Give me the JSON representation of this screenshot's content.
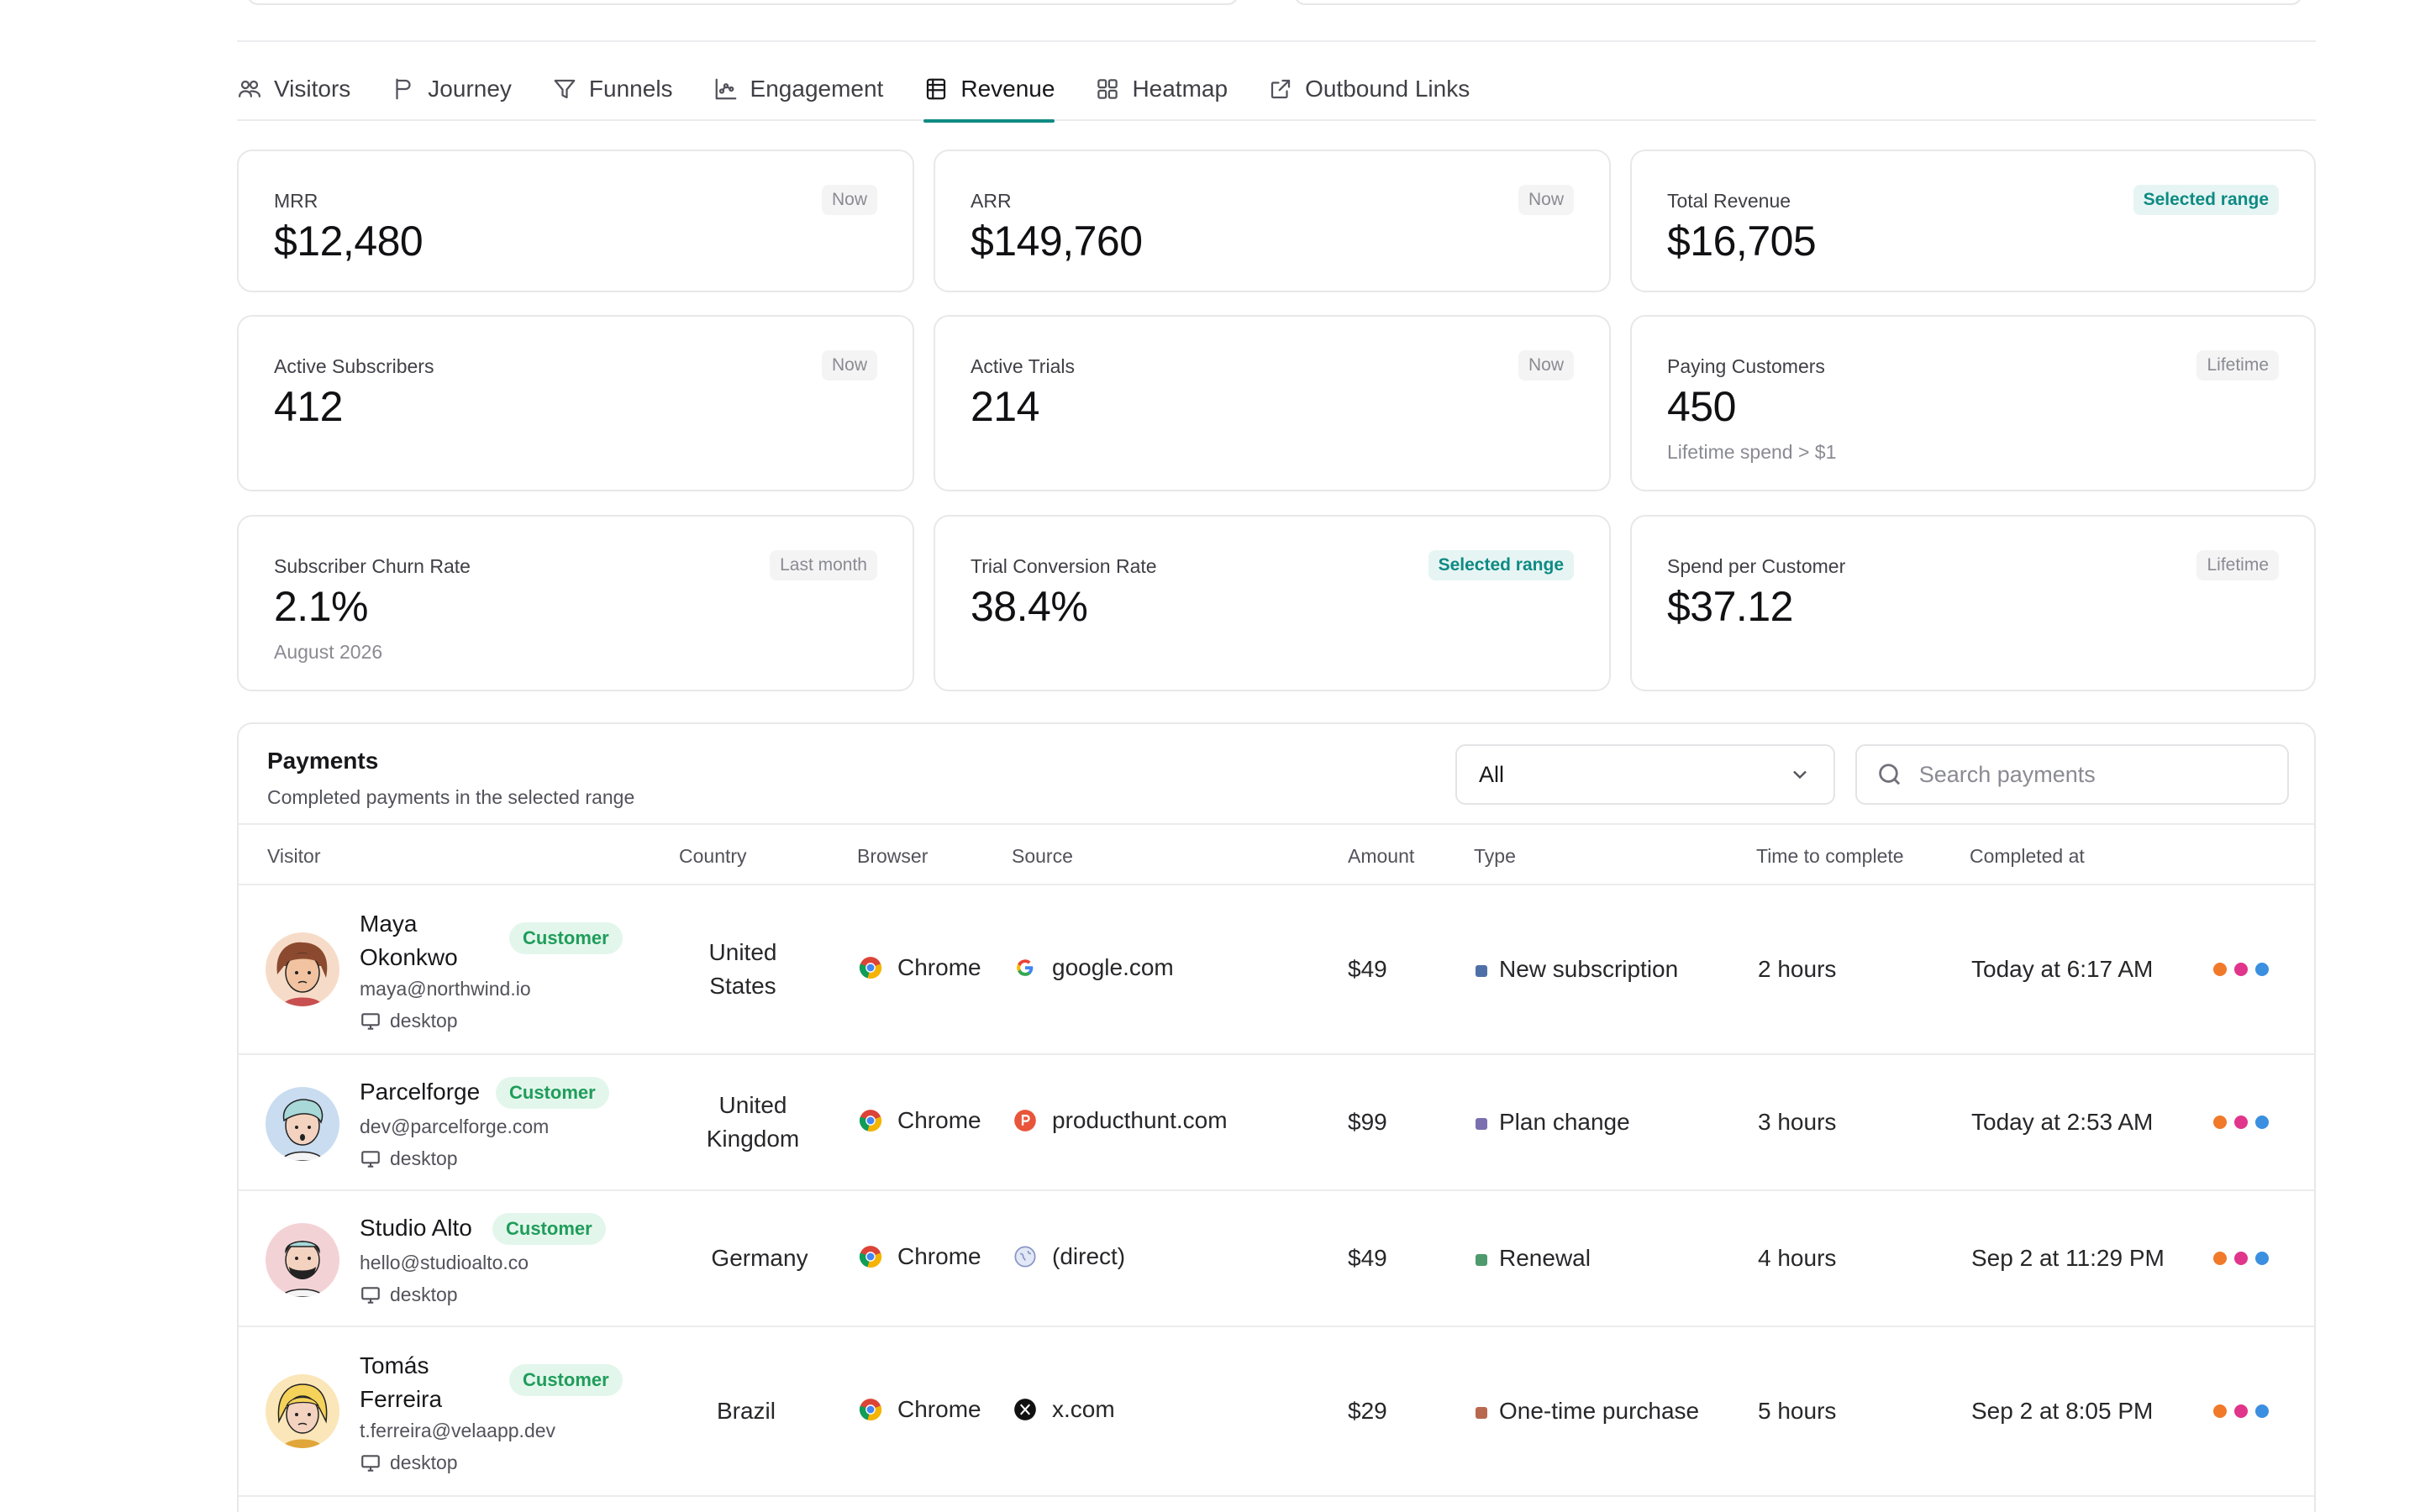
{
  "tabs": [
    {
      "label": "Visitors",
      "icon": "users-icon",
      "active": false
    },
    {
      "label": "Journey",
      "icon": "flag-icon",
      "active": false
    },
    {
      "label": "Funnels",
      "icon": "filter-icon",
      "active": false
    },
    {
      "label": "Engagement",
      "icon": "chart-icon",
      "active": false
    },
    {
      "label": "Revenue",
      "icon": "database-icon",
      "active": true
    },
    {
      "label": "Heatmap",
      "icon": "grid-icon",
      "active": false
    },
    {
      "label": "Outbound Links",
      "icon": "external-link-icon",
      "active": false
    }
  ],
  "metrics": {
    "mrr": {
      "label": "MRR",
      "badge": "Now",
      "value": "$12,480"
    },
    "arr": {
      "label": "ARR",
      "badge": "Now",
      "value": "$149,760"
    },
    "total_revenue": {
      "label": "Total Revenue",
      "badge": "Selected range",
      "value": "$16,705"
    },
    "active_subscribers": {
      "label": "Active Subscribers",
      "badge": "Now",
      "value": "412"
    },
    "active_trials": {
      "label": "Active Trials",
      "badge": "Now",
      "value": "214"
    },
    "paying_customers": {
      "label": "Paying Customers",
      "badge": "Lifetime",
      "value": "450",
      "sub": "Lifetime spend > $1"
    },
    "churn_rate": {
      "label": "Subscriber Churn Rate",
      "badge": "Last month",
      "value": "2.1%",
      "sub": "August 2026"
    },
    "trial_conversion": {
      "label": "Trial Conversion Rate",
      "badge": "Selected range",
      "value": "38.4%"
    },
    "spend_per_customer": {
      "label": "Spend per Customer",
      "badge": "Lifetime",
      "value": "$37.12"
    }
  },
  "payments": {
    "title": "Payments",
    "subtitle": "Completed payments in the selected range",
    "filter_value": "All",
    "search_placeholder": "Search payments",
    "columns": {
      "visitor": "Visitor",
      "country": "Country",
      "browser": "Browser",
      "source": "Source",
      "amount": "Amount",
      "type": "Type",
      "time": "Time to complete",
      "completed": "Completed at"
    },
    "rows": [
      {
        "name_line1": "Maya",
        "name_line2": "Okonkwo",
        "badge": "Customer",
        "email": "maya@northwind.io",
        "device": "desktop",
        "country_line1": "United",
        "country_line2": "States",
        "browser": "Chrome",
        "source": "google.com",
        "source_icon": "google-icon",
        "amount": "$49",
        "type": "New subscription",
        "type_color": "#4f6fa8",
        "time": "2 hours",
        "completed": "Today at 6:17 AM"
      },
      {
        "name_line1": "Parcelforge",
        "name_line2": "",
        "badge": "Customer",
        "email": "dev@parcelforge.com",
        "device": "desktop",
        "country_line1": "United",
        "country_line2": "Kingdom",
        "browser": "Chrome",
        "source": "producthunt.com",
        "source_icon": "producthunt-icon",
        "amount": "$99",
        "type": "Plan change",
        "type_color": "#7b6fb0",
        "time": "3 hours",
        "completed": "Today at 2:53 AM"
      },
      {
        "name_line1": "Studio Alto",
        "name_line2": "",
        "badge": "Customer",
        "email": "hello@studioalto.co",
        "device": "desktop",
        "country_line1": "Germany",
        "country_line2": "",
        "browser": "Chrome",
        "source": "(direct)",
        "source_icon": "globe-icon",
        "amount": "$49",
        "type": "Renewal",
        "type_color": "#4e9a6e",
        "time": "4 hours",
        "completed": "Sep 2 at 11:29 PM"
      },
      {
        "name_line1": "Tomás",
        "name_line2": "Ferreira",
        "badge": "Customer",
        "email": "t.ferreira@velaapp.dev",
        "device": "desktop",
        "country_line1": "Brazil",
        "country_line2": "",
        "browser": "Chrome",
        "source": "x.com",
        "source_icon": "x-icon",
        "amount": "$29",
        "type": "One-time purchase",
        "type_color": "#b8684e",
        "time": "5 hours",
        "completed": "Sep 2 at 8:05 PM"
      }
    ],
    "row_dot_colors": [
      "#f07a2a",
      "#e0358a",
      "#3b8fe0"
    ]
  }
}
